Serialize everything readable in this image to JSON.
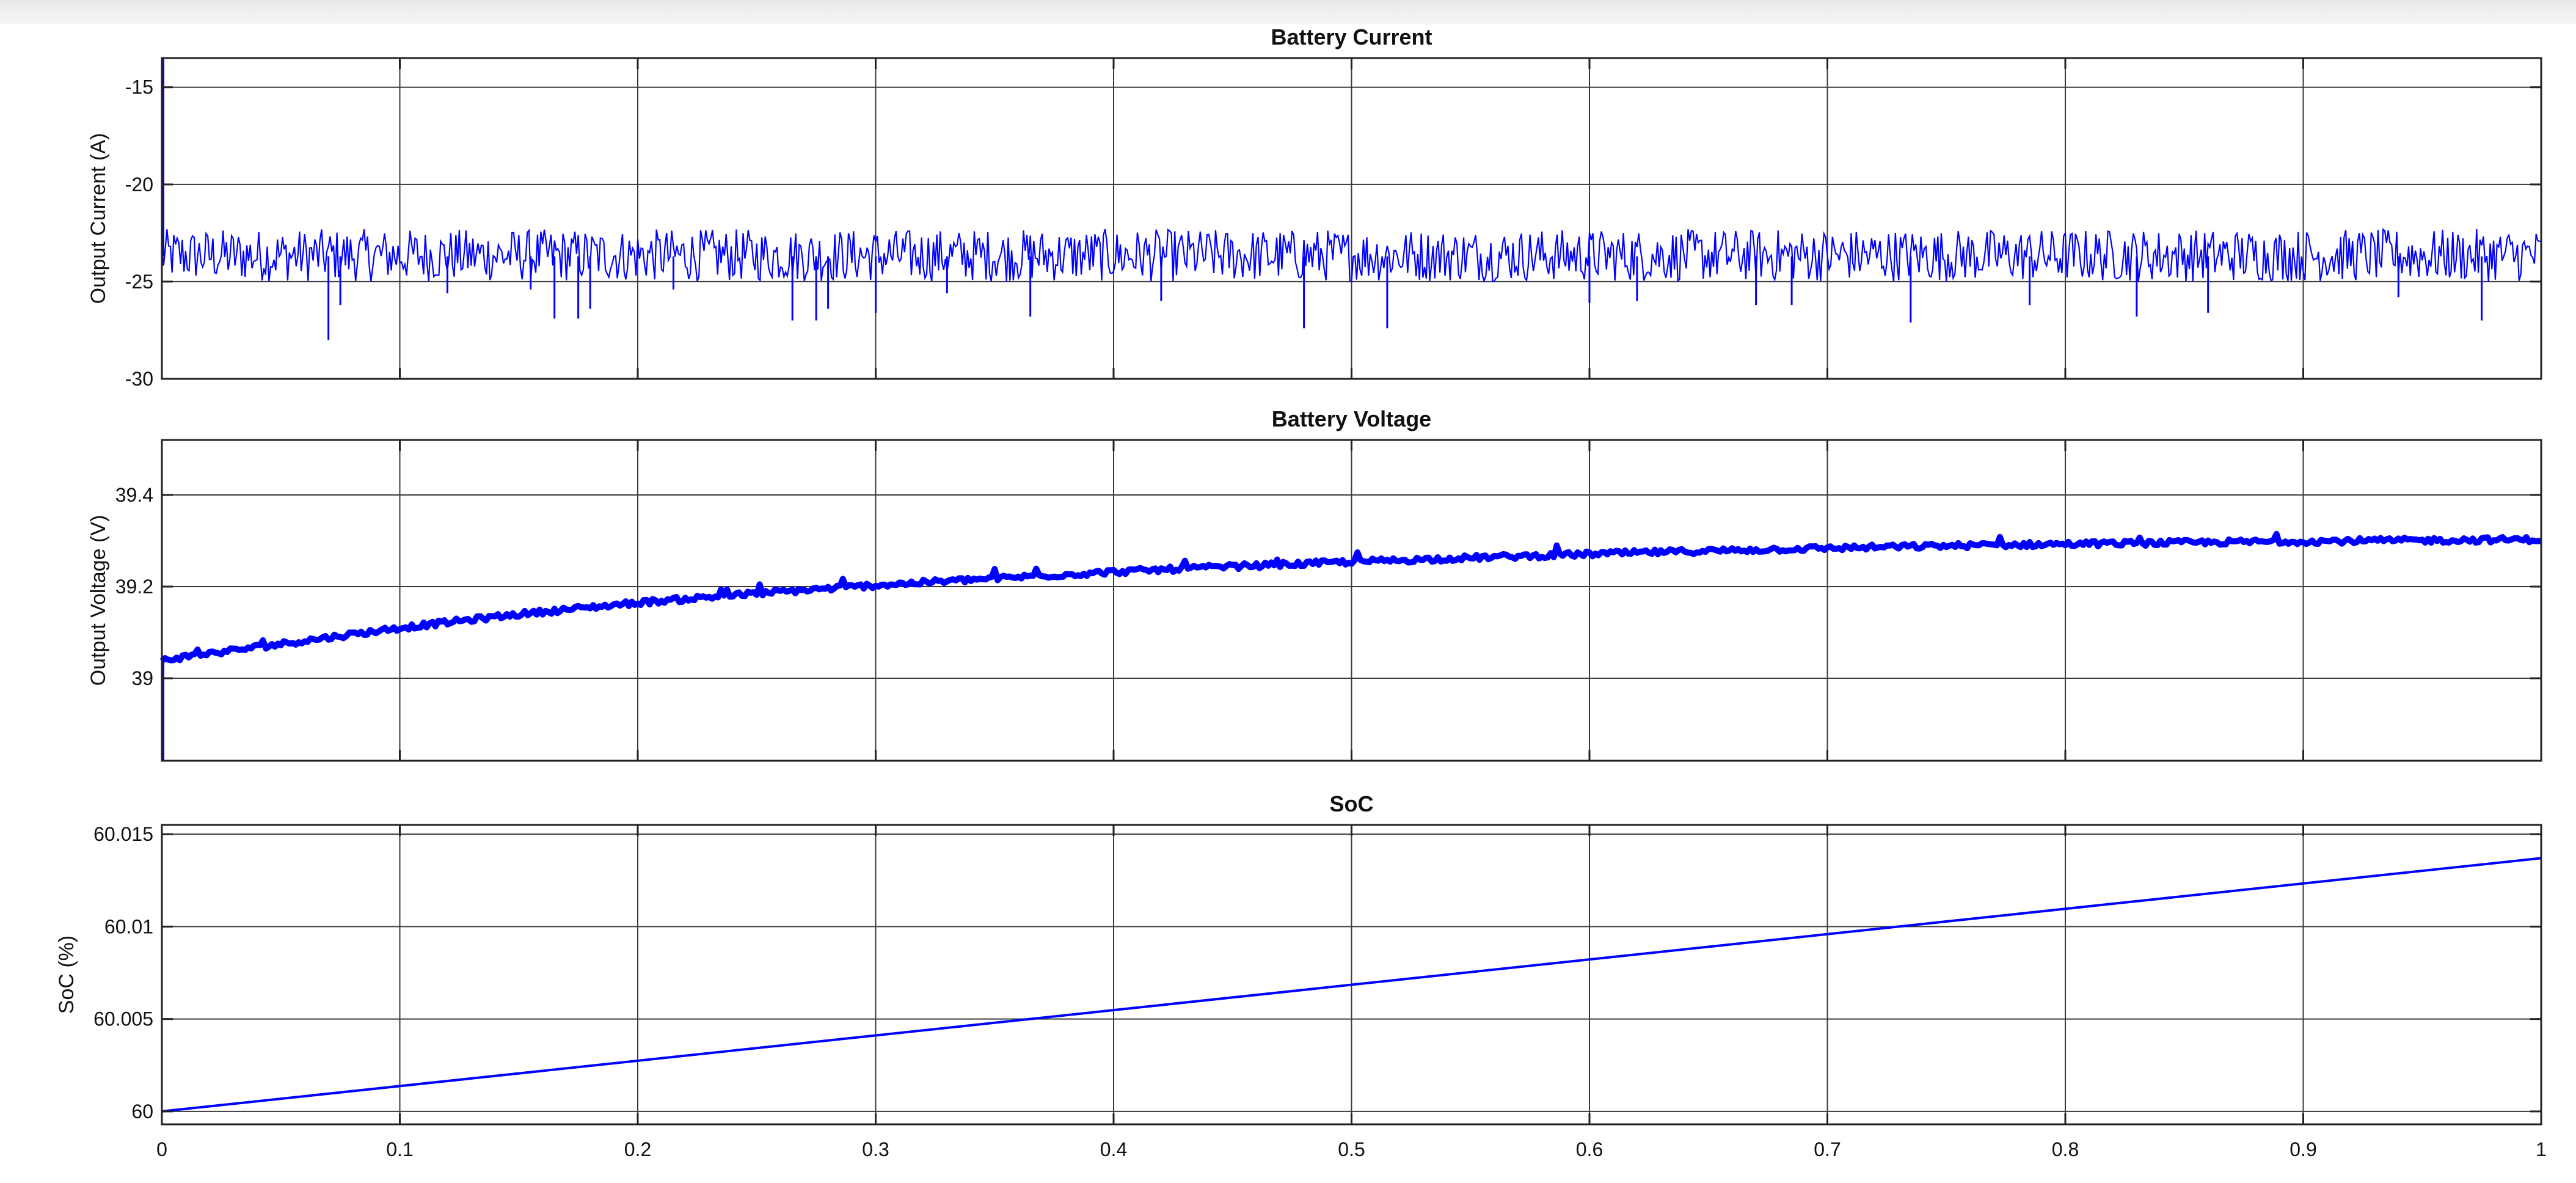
{
  "chart_data": [
    {
      "type": "line",
      "title": "Battery Current",
      "xlabel": "",
      "ylabel": "Output Current (A)",
      "xlim": [
        0,
        1
      ],
      "ylim": [
        -30,
        -13.5
      ],
      "x_ticks": [
        "0",
        "0.1",
        "0.2",
        "0.3",
        "0.4",
        "0.5",
        "0.6",
        "0.7",
        "0.8",
        "0.9",
        "1"
      ],
      "x_tick_values": [
        0,
        0.1,
        0.2,
        0.3,
        0.4,
        0.5,
        0.6,
        0.7,
        0.8,
        0.9,
        1
      ],
      "y_ticks": [
        "-15",
        "-20",
        "-25",
        "-30"
      ],
      "y_tick_values": [
        -15,
        -20,
        -25,
        -30
      ],
      "x_tick_labels_visible": false,
      "grid": true,
      "line_color": "#0000ff",
      "series": [
        {
          "noise": {
            "mean": -23.7,
            "band": [
              -25.0,
              -22.3
            ]
          },
          "initial_transient": {
            "x": 0.0,
            "from": -13.5,
            "to": -23.7
          },
          "spikes": [
            [
              0.07,
              -28.0
            ],
            [
              0.075,
              -26.2
            ],
            [
              0.12,
              -25.6
            ],
            [
              0.155,
              -25.4
            ],
            [
              0.165,
              -26.9
            ],
            [
              0.175,
              -26.9
            ],
            [
              0.18,
              -26.4
            ],
            [
              0.215,
              -25.4
            ],
            [
              0.265,
              -27.0
            ],
            [
              0.275,
              -27.0
            ],
            [
              0.28,
              -26.4
            ],
            [
              0.3,
              -26.6
            ],
            [
              0.33,
              -25.6
            ],
            [
              0.365,
              -26.8
            ],
            [
              0.42,
              -26.0
            ],
            [
              0.48,
              -27.4
            ],
            [
              0.515,
              -27.4
            ],
            [
              0.6,
              -26.1
            ],
            [
              0.62,
              -26.0
            ],
            [
              0.67,
              -26.2
            ],
            [
              0.685,
              -26.2
            ],
            [
              0.735,
              -27.1
            ],
            [
              0.785,
              -26.2
            ],
            [
              0.83,
              -26.8
            ],
            [
              0.86,
              -26.6
            ],
            [
              0.94,
              -25.8
            ],
            [
              0.975,
              -27.0
            ]
          ]
        }
      ]
    },
    {
      "type": "line",
      "title": "Battery Voltage",
      "xlabel": "",
      "ylabel": "Output Voltage (V)",
      "xlim": [
        0,
        1
      ],
      "ylim": [
        38.82,
        39.52
      ],
      "x_ticks": [
        "0",
        "0.1",
        "0.2",
        "0.3",
        "0.4",
        "0.5",
        "0.6",
        "0.7",
        "0.8",
        "0.9",
        "1"
      ],
      "x_tick_values": [
        0,
        0.1,
        0.2,
        0.3,
        0.4,
        0.5,
        0.6,
        0.7,
        0.8,
        0.9,
        1
      ],
      "y_ticks": [
        "39",
        "39.2",
        "39.4"
      ],
      "y_tick_values": [
        39,
        39.2,
        39.4
      ],
      "x_tick_labels_visible": false,
      "grid": true,
      "line_color": "#0000ff",
      "series": [
        {
          "x": [
            0,
            0.05,
            0.1,
            0.15,
            0.2,
            0.25,
            0.3,
            0.35,
            0.4,
            0.45,
            0.5,
            0.55,
            0.6,
            0.65,
            0.7,
            0.75,
            0.8,
            0.85,
            0.9,
            0.95,
            1.0
          ],
          "y": [
            39.04,
            39.075,
            39.11,
            39.14,
            39.165,
            39.185,
            39.203,
            39.218,
            39.232,
            39.244,
            39.254,
            39.263,
            39.271,
            39.278,
            39.284,
            39.289,
            39.293,
            39.296,
            39.299,
            39.301,
            39.303
          ],
          "initial_transient": {
            "x": 0.0,
            "from": 38.82,
            "to": 39.04
          }
        }
      ]
    },
    {
      "type": "line",
      "title": "SoC",
      "xlabel": "",
      "ylabel": "SoC (%)",
      "xlim": [
        0,
        1
      ],
      "ylim": [
        59.9993,
        60.0155
      ],
      "x_ticks": [
        "0",
        "0.1",
        "0.2",
        "0.3",
        "0.4",
        "0.5",
        "0.6",
        "0.7",
        "0.8",
        "0.9",
        "1"
      ],
      "x_tick_values": [
        0,
        0.1,
        0.2,
        0.3,
        0.4,
        0.5,
        0.6,
        0.7,
        0.8,
        0.9,
        1
      ],
      "y_ticks": [
        "60.015",
        "60.01",
        "60.005",
        "60"
      ],
      "y_tick_values": [
        60.015,
        60.01,
        60.005,
        60
      ],
      "x_tick_labels_visible": true,
      "grid": true,
      "line_color": "#0000ff",
      "series": [
        {
          "x": [
            0,
            1
          ],
          "y": [
            60.0,
            60.0137
          ]
        }
      ]
    }
  ]
}
